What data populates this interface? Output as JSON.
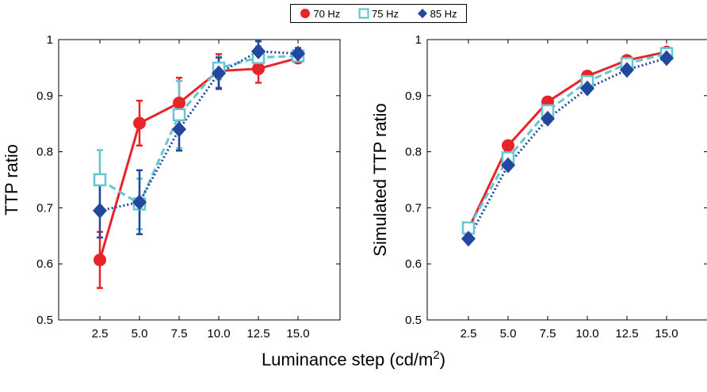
{
  "colors": {
    "70hz": "#e8242a",
    "75hz": "#63c6d2",
    "85hz": "#21489e"
  },
  "legend": {
    "items": [
      "70 Hz",
      "75 Hz",
      "85 Hz"
    ]
  },
  "xlabel_main": "Luminance step (cd/m",
  "xlabel_sup": "2",
  "xlabel_end": ")",
  "chart_data": [
    {
      "type": "line",
      "ylabel": "TTP ratio",
      "ylim": [
        0.5,
        1
      ],
      "yticks": [
        "0.5",
        "0.6",
        "0.7",
        "0.8",
        "0.9",
        "1"
      ],
      "categories": [
        "2.5",
        "5.0",
        "7.5",
        "10.0",
        "12.5",
        "15.0"
      ],
      "series": [
        {
          "name": "70 Hz",
          "values": [
            0.607,
            0.851,
            0.887,
            0.944,
            0.948,
            0.967
          ],
          "err": [
            0.05,
            0.04,
            0.045,
            0.03,
            0.025,
            0.008
          ],
          "style": "solid",
          "marker": "circle"
        },
        {
          "name": "75 Hz",
          "values": [
            0.75,
            0.707,
            0.866,
            0.949,
            0.968,
            0.971
          ],
          "err": [
            0.053,
            0.045,
            0.06,
            0.02,
            0.02,
            0.012
          ],
          "style": "dashed",
          "marker": "square"
        },
        {
          "name": "85 Hz",
          "values": [
            0.695,
            0.71,
            0.84,
            0.94,
            0.979,
            0.975
          ],
          "err": [
            0.048,
            0.057,
            0.038,
            0.028,
            0.018,
            0.01
          ],
          "style": "dotted",
          "marker": "diamond"
        }
      ]
    },
    {
      "type": "line",
      "ylabel": "Simulated TTP ratio",
      "ylim": [
        0.5,
        1
      ],
      "yticks": [
        "0.5",
        "0.6",
        "0.7",
        "0.8",
        "0.9",
        "1"
      ],
      "categories": [
        "2.5",
        "5.0",
        "7.5",
        "10.0",
        "12.5",
        "15.0"
      ],
      "series": [
        {
          "name": "70 Hz",
          "values": [
            0.662,
            0.811,
            0.889,
            0.935,
            0.963,
            0.978
          ],
          "style": "solid",
          "marker": "circle"
        },
        {
          "name": "75 Hz",
          "values": [
            0.664,
            0.789,
            0.873,
            0.925,
            0.957,
            0.975
          ],
          "style": "dashed",
          "marker": "square"
        },
        {
          "name": "85 Hz",
          "values": [
            0.645,
            0.776,
            0.859,
            0.913,
            0.946,
            0.967
          ],
          "style": "dotted",
          "marker": "diamond"
        }
      ]
    }
  ]
}
